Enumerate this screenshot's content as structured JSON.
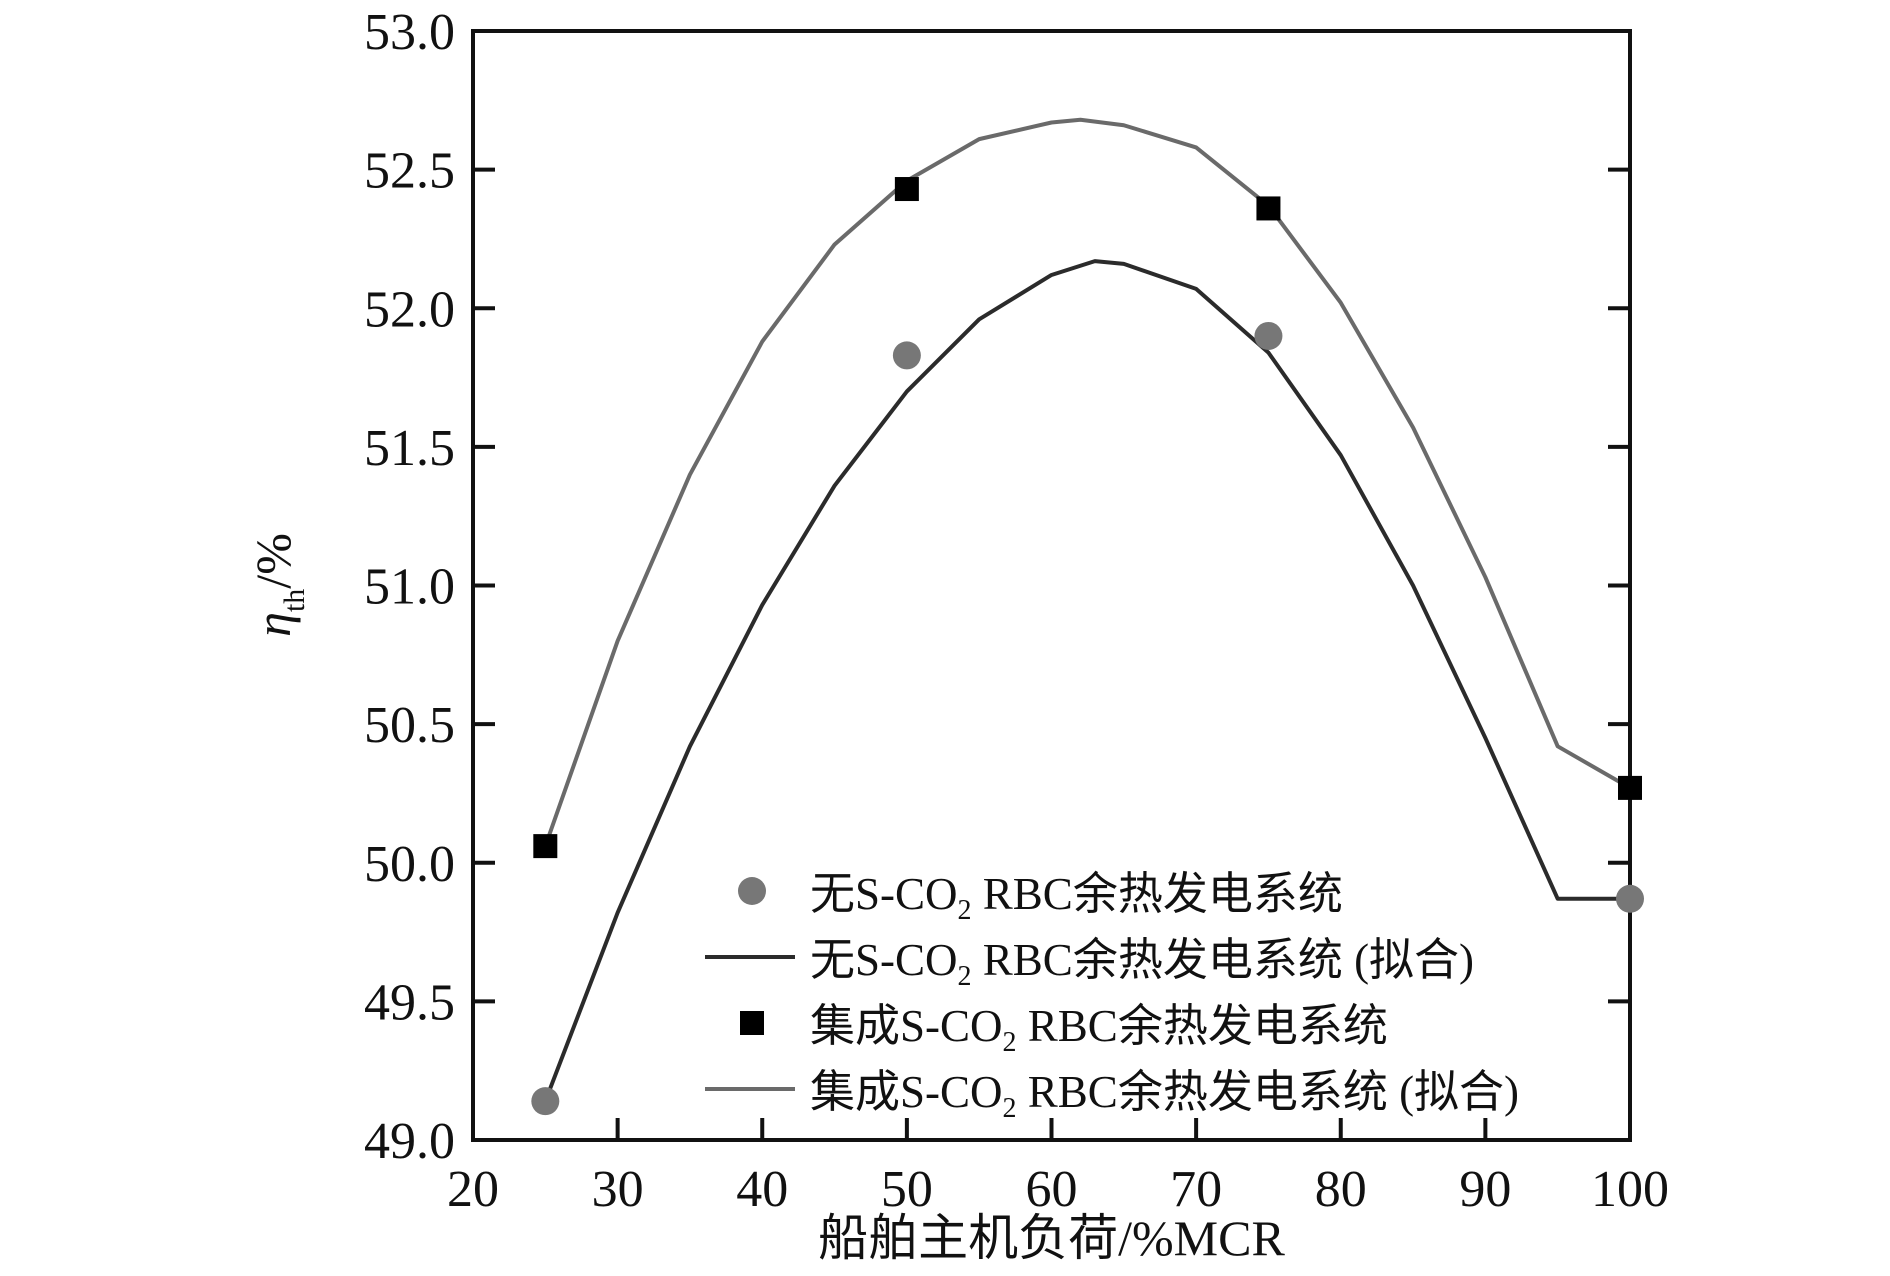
{
  "chart_data": {
    "type": "line",
    "xlabel": "船舶主机负荷/%MCR",
    "ylabel": "η",
    "ylabel_subscript": "th",
    "ylabel_suffix": "/%",
    "xlim": [
      20,
      100
    ],
    "ylim": [
      49.0,
      53.0
    ],
    "xticks": [
      20,
      30,
      40,
      50,
      60,
      70,
      80,
      90,
      100
    ],
    "yticks": [
      49.0,
      49.5,
      50.0,
      50.5,
      51.0,
      51.5,
      52.0,
      52.5,
      53.0
    ],
    "xtick_labels": [
      "20",
      "30",
      "40",
      "50",
      "60",
      "70",
      "80",
      "90",
      "100"
    ],
    "ytick_labels": [
      "49.0",
      "49.5",
      "50.0",
      "50.5",
      "51.0",
      "51.5",
      "52.0",
      "52.5",
      "53.0"
    ],
    "grid": false,
    "legend_position": "bottom-right",
    "series": [
      {
        "name": "无S-CO2 RBC余热发电系统",
        "kind": "points",
        "marker": "circle",
        "color": "#777777",
        "x": [
          25,
          50,
          75,
          100
        ],
        "y": [
          49.14,
          51.83,
          51.9,
          49.87
        ]
      },
      {
        "name": "无S-CO2 RBC余热发电系统 (拟合)",
        "kind": "fit",
        "color": "#2b2b2b",
        "x": [
          25,
          30,
          35,
          40,
          45,
          50,
          55,
          60,
          63,
          65,
          70,
          75,
          80,
          85,
          90,
          95,
          100
        ],
        "y": [
          49.14,
          49.82,
          50.42,
          50.93,
          51.36,
          51.7,
          51.96,
          52.12,
          52.17,
          52.16,
          52.07,
          51.84,
          51.47,
          51.0,
          50.45,
          49.87,
          49.87
        ]
      },
      {
        "name": "集成S-CO2 RBC余热发电系统",
        "kind": "points",
        "marker": "square",
        "color": "#000000",
        "x": [
          25,
          50,
          75,
          100
        ],
        "y": [
          50.06,
          52.43,
          52.36,
          50.27
        ]
      },
      {
        "name": "集成S-CO2 RBC余热发电系统 (拟合)",
        "kind": "fit",
        "color": "#6a6a6a",
        "x": [
          25,
          30,
          35,
          40,
          45,
          50,
          55,
          60,
          62,
          65,
          70,
          75,
          80,
          85,
          90,
          95,
          100
        ],
        "y": [
          50.06,
          50.8,
          51.4,
          51.88,
          52.23,
          52.46,
          52.61,
          52.67,
          52.68,
          52.66,
          52.58,
          52.37,
          52.02,
          51.57,
          51.03,
          50.42,
          50.27
        ]
      }
    ],
    "legend": [
      {
        "prefix": "无S-CO",
        "sub": "2",
        "suffix": " RBC余热发电系统",
        "marker": "circle",
        "color": "#777777"
      },
      {
        "prefix": "无S-CO",
        "sub": "2",
        "suffix": " RBC余热发电系统 (拟合)",
        "marker": "line",
        "color": "#2b2b2b"
      },
      {
        "prefix": "集成S-CO",
        "sub": "2",
        "suffix": " RBC余热发电系统",
        "marker": "square",
        "color": "#000000"
      },
      {
        "prefix": "集成S-CO",
        "sub": "2",
        "suffix": " RBC余热发电系统 (拟合)",
        "marker": "line",
        "color": "#6a6a6a"
      }
    ]
  }
}
